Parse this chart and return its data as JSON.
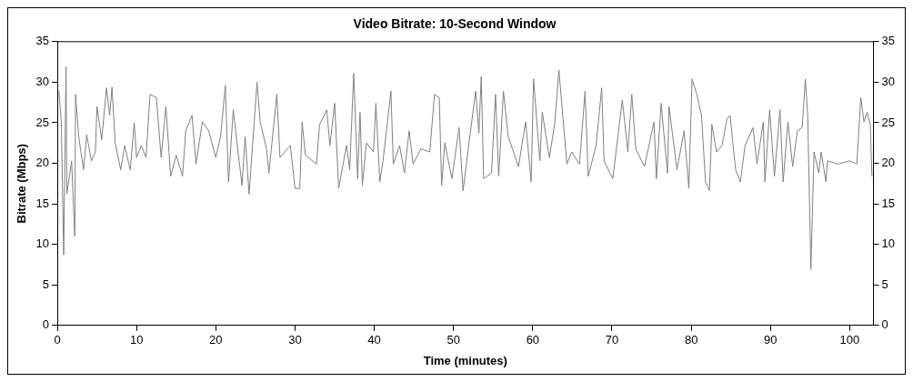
{
  "chart_data": {
    "type": "line",
    "title": "Video Bitrate: 10-Second Window",
    "xlabel": "Time (minutes)",
    "ylabel": "Bitrate (Mbps)",
    "x": [
      0.2,
      0.5,
      0.8,
      1.1,
      1.2,
      1.8,
      2.2,
      2.3,
      2.7,
      3.3,
      3.7,
      4.3,
      4.8,
      5.0,
      5.6,
      6.2,
      6.6,
      6.9,
      7.3,
      8.0,
      8.5,
      9.2,
      9.7,
      10.0,
      10.6,
      11.2,
      11.7,
      12.5,
      13.1,
      13.7,
      14.3,
      15.0,
      15.8,
      16.2,
      17.0,
      17.5,
      18.3,
      19.1,
      20.0,
      20.6,
      21.2,
      21.6,
      22.2,
      23.3,
      23.7,
      24.2,
      25.2,
      25.6,
      26.4,
      26.7,
      27.7,
      28.1,
      29.4,
      30.0,
      30.6,
      30.9,
      31.3,
      32.7,
      33.1,
      34.0,
      34.4,
      35.0,
      35.5,
      36.5,
      36.9,
      37.4,
      37.9,
      38.2,
      38.5,
      39.0,
      39.9,
      40.2,
      40.7,
      41.1,
      42.1,
      42.4,
      43.2,
      43.8,
      44.4,
      44.9,
      45.9,
      47.0,
      47.6,
      48.2,
      48.5,
      48.9,
      49.8,
      50.7,
      51.2,
      52.0,
      52.8,
      53.2,
      53.5,
      53.8,
      54.8,
      55.3,
      55.7,
      56.3,
      56.9,
      58.2,
      59.1,
      59.8,
      60.1,
      60.9,
      61.2,
      62.1,
      62.8,
      63.3,
      64.3,
      64.9,
      65.9,
      66.6,
      67.0,
      68.0,
      68.7,
      69.0,
      70.1,
      71.3,
      72.0,
      72.5,
      73.0,
      74.1,
      75.3,
      75.6,
      76.2,
      77.0,
      77.2,
      78.2,
      79.1,
      79.7,
      80.1,
      80.7,
      81.3,
      81.8,
      82.3,
      82.6,
      83.2,
      83.9,
      84.5,
      84.9,
      85.6,
      86.2,
      86.8,
      87.8,
      88.3,
      89.1,
      89.3,
      89.9,
      90.5,
      91.2,
      91.6,
      92.2,
      92.8,
      93.4,
      94.0,
      94.4,
      94.7,
      95.1,
      95.5,
      96.1,
      96.4,
      97.0,
      97.2,
      98.5,
      100.0,
      100.9,
      101.4,
      101.8,
      102.2,
      102.6,
      102.8
    ],
    "values": [
      28.9,
      25.1,
      8.7,
      31.9,
      16.2,
      20.3,
      11,
      28.5,
      23.3,
      19.2,
      23.5,
      20.3,
      21.4,
      27,
      22.9,
      29.3,
      25.9,
      29.4,
      22.5,
      19.2,
      22.2,
      19.2,
      25,
      20.7,
      22.2,
      20.7,
      28.5,
      28.1,
      20.7,
      27,
      18.4,
      21,
      18.4,
      24,
      25.9,
      19.9,
      25.1,
      24,
      20.7,
      23.3,
      29.6,
      17.7,
      26.6,
      17.3,
      23.3,
      16.2,
      30,
      25.1,
      21.8,
      18.8,
      28.5,
      20.7,
      22.2,
      16.9,
      16.9,
      25.1,
      21,
      19.9,
      24.8,
      26.6,
      22.2,
      27.4,
      16.9,
      22.2,
      19.2,
      31.1,
      18.1,
      26.3,
      17.3,
      22.5,
      21.4,
      27.4,
      17.7,
      20.3,
      28.9,
      19.9,
      22.2,
      18.8,
      24,
      19.9,
      21.8,
      21.4,
      28.5,
      28.1,
      17.3,
      22.5,
      18.1,
      24.4,
      16.6,
      22.9,
      28.9,
      23.7,
      30.7,
      18.1,
      18.8,
      28.5,
      18.4,
      28.9,
      23.3,
      19.6,
      25.1,
      17.7,
      30.4,
      20.3,
      26.3,
      20.7,
      25.1,
      31.5,
      19.9,
      21.4,
      19.9,
      28.9,
      18.4,
      22.2,
      29.3,
      20.3,
      18.1,
      27.8,
      21.4,
      28.5,
      21.8,
      19.6,
      25.1,
      18.1,
      27.4,
      18.8,
      27,
      19.2,
      24,
      16.9,
      30.4,
      28.5,
      25.9,
      17.7,
      16.6,
      24.8,
      21.4,
      22.2,
      25.5,
      25.9,
      19.2,
      17.7,
      22.2,
      24.4,
      19.9,
      25.1,
      17.7,
      26.6,
      18.4,
      26.6,
      17.7,
      25.1,
      19.6,
      24,
      24.4,
      30.4,
      25.9,
      6.9,
      21.4,
      18.8,
      21.4,
      17.7,
      20.3,
      19.9,
      20.3,
      19.9,
      28.1,
      25.1,
      26.3,
      24.8,
      18.4
    ],
    "color": "#808080",
    "xlim": [
      0,
      103
    ],
    "xticks": [
      0,
      10,
      20,
      30,
      40,
      50,
      60,
      70,
      80,
      90,
      100
    ],
    "ylim": [
      0,
      35
    ],
    "yticks": [
      0,
      5,
      10,
      15,
      20,
      25,
      30,
      35
    ],
    "y2lim": [
      0,
      35
    ],
    "y2ticks": [
      0,
      5,
      10,
      15,
      20,
      25,
      30,
      35
    ],
    "grid": false,
    "legend": false,
    "marker": "none",
    "line_style": "solid"
  }
}
